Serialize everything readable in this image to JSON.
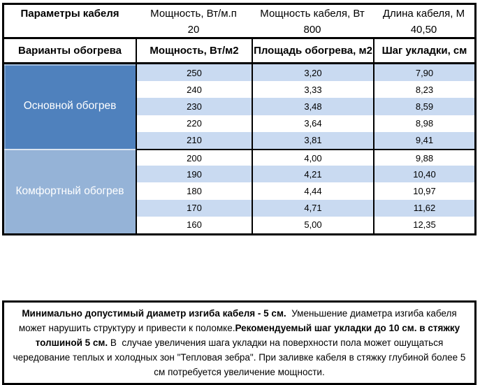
{
  "table": {
    "params_row": {
      "title": "Параметры кабеля",
      "cols": [
        "Мощность, Вт/м.п",
        "Мощность кабеля, Вт",
        "Длина кабеля, М"
      ],
      "values": [
        "20",
        "800",
        "40,50"
      ]
    },
    "variants_row": [
      "Варианты обогрева",
      "Мощность, Вт/м2",
      "Площадь обогрева, м2",
      "Шаг укладки, см"
    ],
    "sections": [
      {
        "label": "Основной обогрев",
        "color": "#4F81BD",
        "rows": [
          [
            "250",
            "3,20",
            "7,90"
          ],
          [
            "240",
            "3,33",
            "8,23"
          ],
          [
            "230",
            "3,48",
            "8,59"
          ],
          [
            "220",
            "3,64",
            "8,98"
          ],
          [
            "210",
            "3,81",
            "9,41"
          ]
        ]
      },
      {
        "label": "Комфортный обогрев",
        "color": "#95B3D7",
        "rows": [
          [
            "200",
            "4,00",
            "9,88"
          ],
          [
            "190",
            "4,21",
            "10,40"
          ],
          [
            "180",
            "4,44",
            "10,97"
          ],
          [
            "170",
            "4,71",
            "11,62"
          ],
          [
            "160",
            "5,00",
            "12,35"
          ]
        ]
      }
    ]
  },
  "note": {
    "segments": [
      {
        "bold": true,
        "text": "Минимально допустимый диаметр изгиба кабеля - 5 см."
      },
      {
        "bold": false,
        "text": "  Уменьшение диаметра изгиба кабеля может нарушить структуру и привести к поломке."
      },
      {
        "bold": true,
        "text": "Рекомендуемый шаг укладки до 10 см. в стяжку толшиной 5 см."
      },
      {
        "bold": false,
        "text": " В  случае увеличения шага укладки на поверхности пола может ошущаться чередование теплых и холодных зон \"Тепловая зебра\". При заливке кабеля в стяжку глубиной более 5 см потребуется увеличение мощности."
      }
    ]
  },
  "colors": {
    "section_main": "#4F81BD",
    "section_comfort": "#95B3D7",
    "row_alt": "#C9DAF1",
    "border": "#000000"
  }
}
